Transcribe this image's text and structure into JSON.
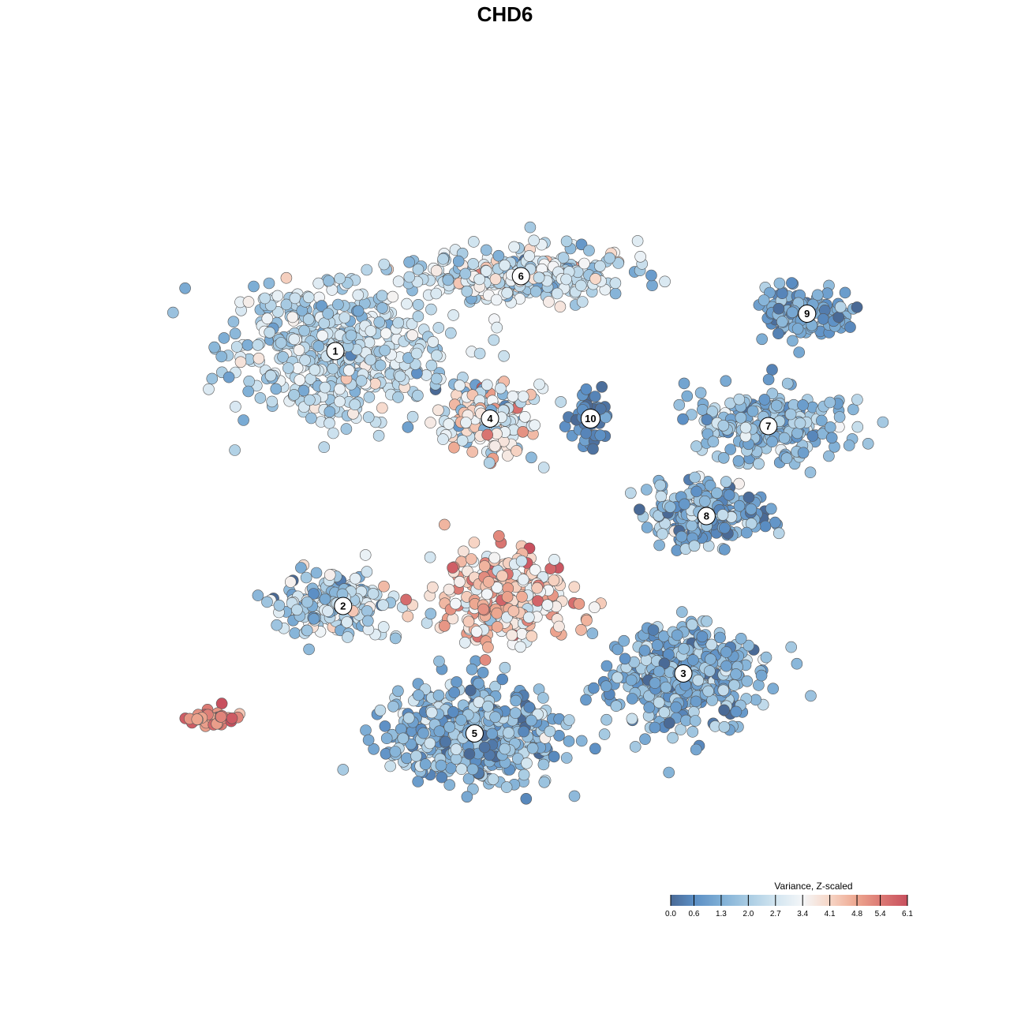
{
  "chart_data": {
    "type": "scatter",
    "title": "CHD6",
    "xlabel": "",
    "ylabel": "",
    "grid": false,
    "axes_visible": false,
    "xlim": [
      0,
      1
    ],
    "ylim": [
      0,
      1
    ],
    "colorbar": {
      "title": "Variance, Z-scaled",
      "placement": "bottom-right",
      "range": [
        0.0,
        6.1
      ],
      "ticks": [
        "0.0",
        "0.6",
        "1.3",
        "2.0",
        "2.7",
        "3.4",
        "4.1",
        "4.8",
        "5.4",
        "6.1"
      ],
      "stops": [
        {
          "value": 0.0,
          "color": "#4a6a96"
        },
        {
          "value": 0.6,
          "color": "#5b8ec4"
        },
        {
          "value": 1.3,
          "color": "#7fafd6"
        },
        {
          "value": 2.0,
          "color": "#a9cce3"
        },
        {
          "value": 2.7,
          "color": "#d2e5f0"
        },
        {
          "value": 3.4,
          "color": "#f4f6f8"
        },
        {
          "value": 4.1,
          "color": "#f7d6c6"
        },
        {
          "value": 4.8,
          "color": "#eda68f"
        },
        {
          "value": 5.4,
          "color": "#dc7a74"
        },
        {
          "value": 6.1,
          "color": "#c8505e"
        }
      ]
    },
    "clusters": [
      {
        "label": "1",
        "x": 0.25,
        "y": 0.7,
        "mean": 2.3,
        "spread": 0.65
      },
      {
        "label": "2",
        "x": 0.26,
        "y": 0.36,
        "mean": 2.4,
        "spread": 0.9
      },
      {
        "label": "3",
        "x": 0.7,
        "y": 0.27,
        "mean": 1.3,
        "spread": 0.7
      },
      {
        "label": "4",
        "x": 0.45,
        "y": 0.61,
        "mean": 3.2,
        "spread": 1.1
      },
      {
        "label": "5",
        "x": 0.43,
        "y": 0.19,
        "mean": 1.4,
        "spread": 0.8
      },
      {
        "label": "6",
        "x": 0.49,
        "y": 0.8,
        "mean": 2.5,
        "spread": 0.9
      },
      {
        "label": "7",
        "x": 0.81,
        "y": 0.6,
        "mean": 1.7,
        "spread": 0.7
      },
      {
        "label": "8",
        "x": 0.73,
        "y": 0.48,
        "mean": 1.3,
        "spread": 0.8
      },
      {
        "label": "9",
        "x": 0.86,
        "y": 0.75,
        "mean": 1.1,
        "spread": 0.5
      },
      {
        "label": "10",
        "x": 0.58,
        "y": 0.61,
        "mean": 0.4,
        "spread": 0.4
      }
    ],
    "hotspots": [
      {
        "x": 0.47,
        "y": 0.37,
        "mean": 4.2,
        "spread": 0.9
      },
      {
        "x": 0.09,
        "y": 0.21,
        "mean": 5.3,
        "spread": 0.6
      }
    ]
  }
}
